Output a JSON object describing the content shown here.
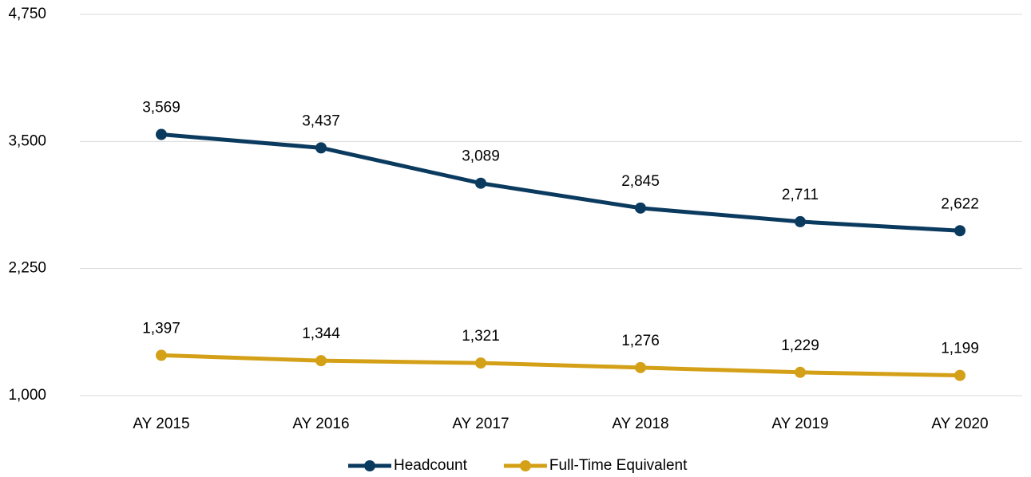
{
  "chart_data": {
    "type": "line",
    "categories": [
      "AY 2015",
      "AY 2016",
      "AY 2017",
      "AY 2018",
      "AY 2019",
      "AY 2020"
    ],
    "series": [
      {
        "name": "Headcount",
        "color": "#0b3a5f",
        "values": [
          3569,
          3437,
          3089,
          2845,
          2711,
          2622
        ],
        "value_labels": [
          "3,569",
          "3,437",
          "3,089",
          "2,845",
          "2,711",
          "2,622"
        ]
      },
      {
        "name": "Full-Time Equivalent",
        "color": "#d4a017",
        "values": [
          1397,
          1344,
          1321,
          1276,
          1229,
          1199
        ],
        "value_labels": [
          "1,397",
          "1,344",
          "1,321",
          "1,276",
          "1,229",
          "1,199"
        ]
      }
    ],
    "ylim": [
      1000,
      4750
    ],
    "yticks": [
      {
        "value": 1000,
        "label": "1,000"
      },
      {
        "value": 2250,
        "label": "2,250"
      },
      {
        "value": 3500,
        "label": "3,500"
      },
      {
        "value": 4750,
        "label": "4,750"
      }
    ],
    "grid": true,
    "legend": "bottom"
  }
}
